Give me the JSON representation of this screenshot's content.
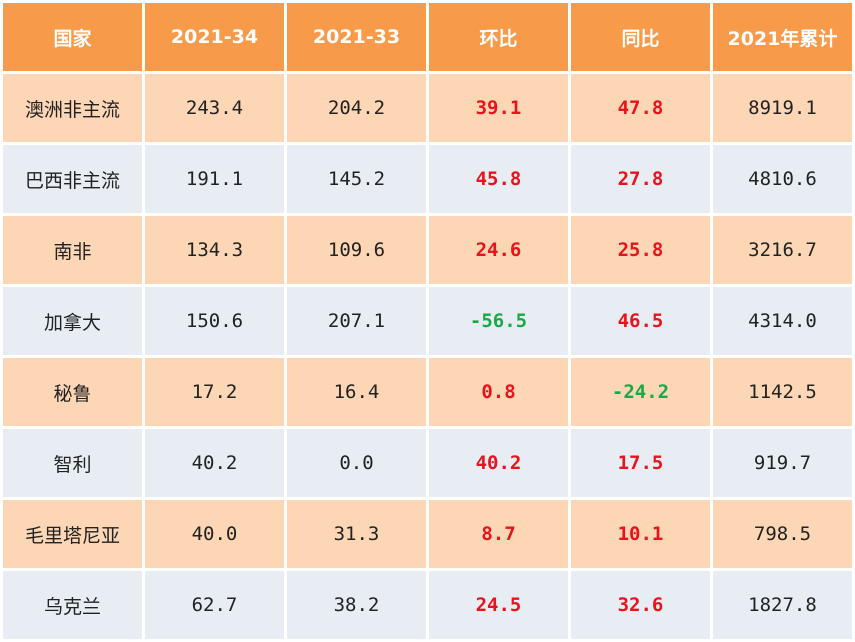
{
  "chart_data": {
    "type": "table",
    "columns": [
      "国家",
      "2021-34",
      "2021-33",
      "环比",
      "同比",
      "2021年累计"
    ],
    "rows": [
      [
        "澳洲非主流",
        "243.4",
        "204.2",
        "39.1",
        "47.8",
        "8919.1"
      ],
      [
        "巴西非主流",
        "191.1",
        "145.2",
        "45.8",
        "27.8",
        "4810.6"
      ],
      [
        "南非",
        "134.3",
        "109.6",
        "24.6",
        "25.8",
        "3216.7"
      ],
      [
        "加拿大",
        "150.6",
        "207.1",
        "-56.5",
        "46.5",
        "4314.0"
      ],
      [
        "秘鲁",
        "17.2",
        "16.4",
        "0.8",
        "-24.2",
        "1142.5"
      ],
      [
        "智利",
        "40.2",
        "0.0",
        "40.2",
        "17.5",
        "919.7"
      ],
      [
        "毛里塔尼亚",
        "40.0",
        "31.3",
        "8.7",
        "10.1",
        "798.5"
      ],
      [
        "乌克兰",
        "62.7",
        "38.2",
        "24.5",
        "32.6",
        "1827.8"
      ]
    ],
    "colors": {
      "header_bg": "#f79a4a",
      "row_odd_bg": "#fdd6b5",
      "row_even_bg": "#e8ecf3",
      "positive_text": "#e8131b",
      "negative_text": "#1aa94a"
    }
  }
}
